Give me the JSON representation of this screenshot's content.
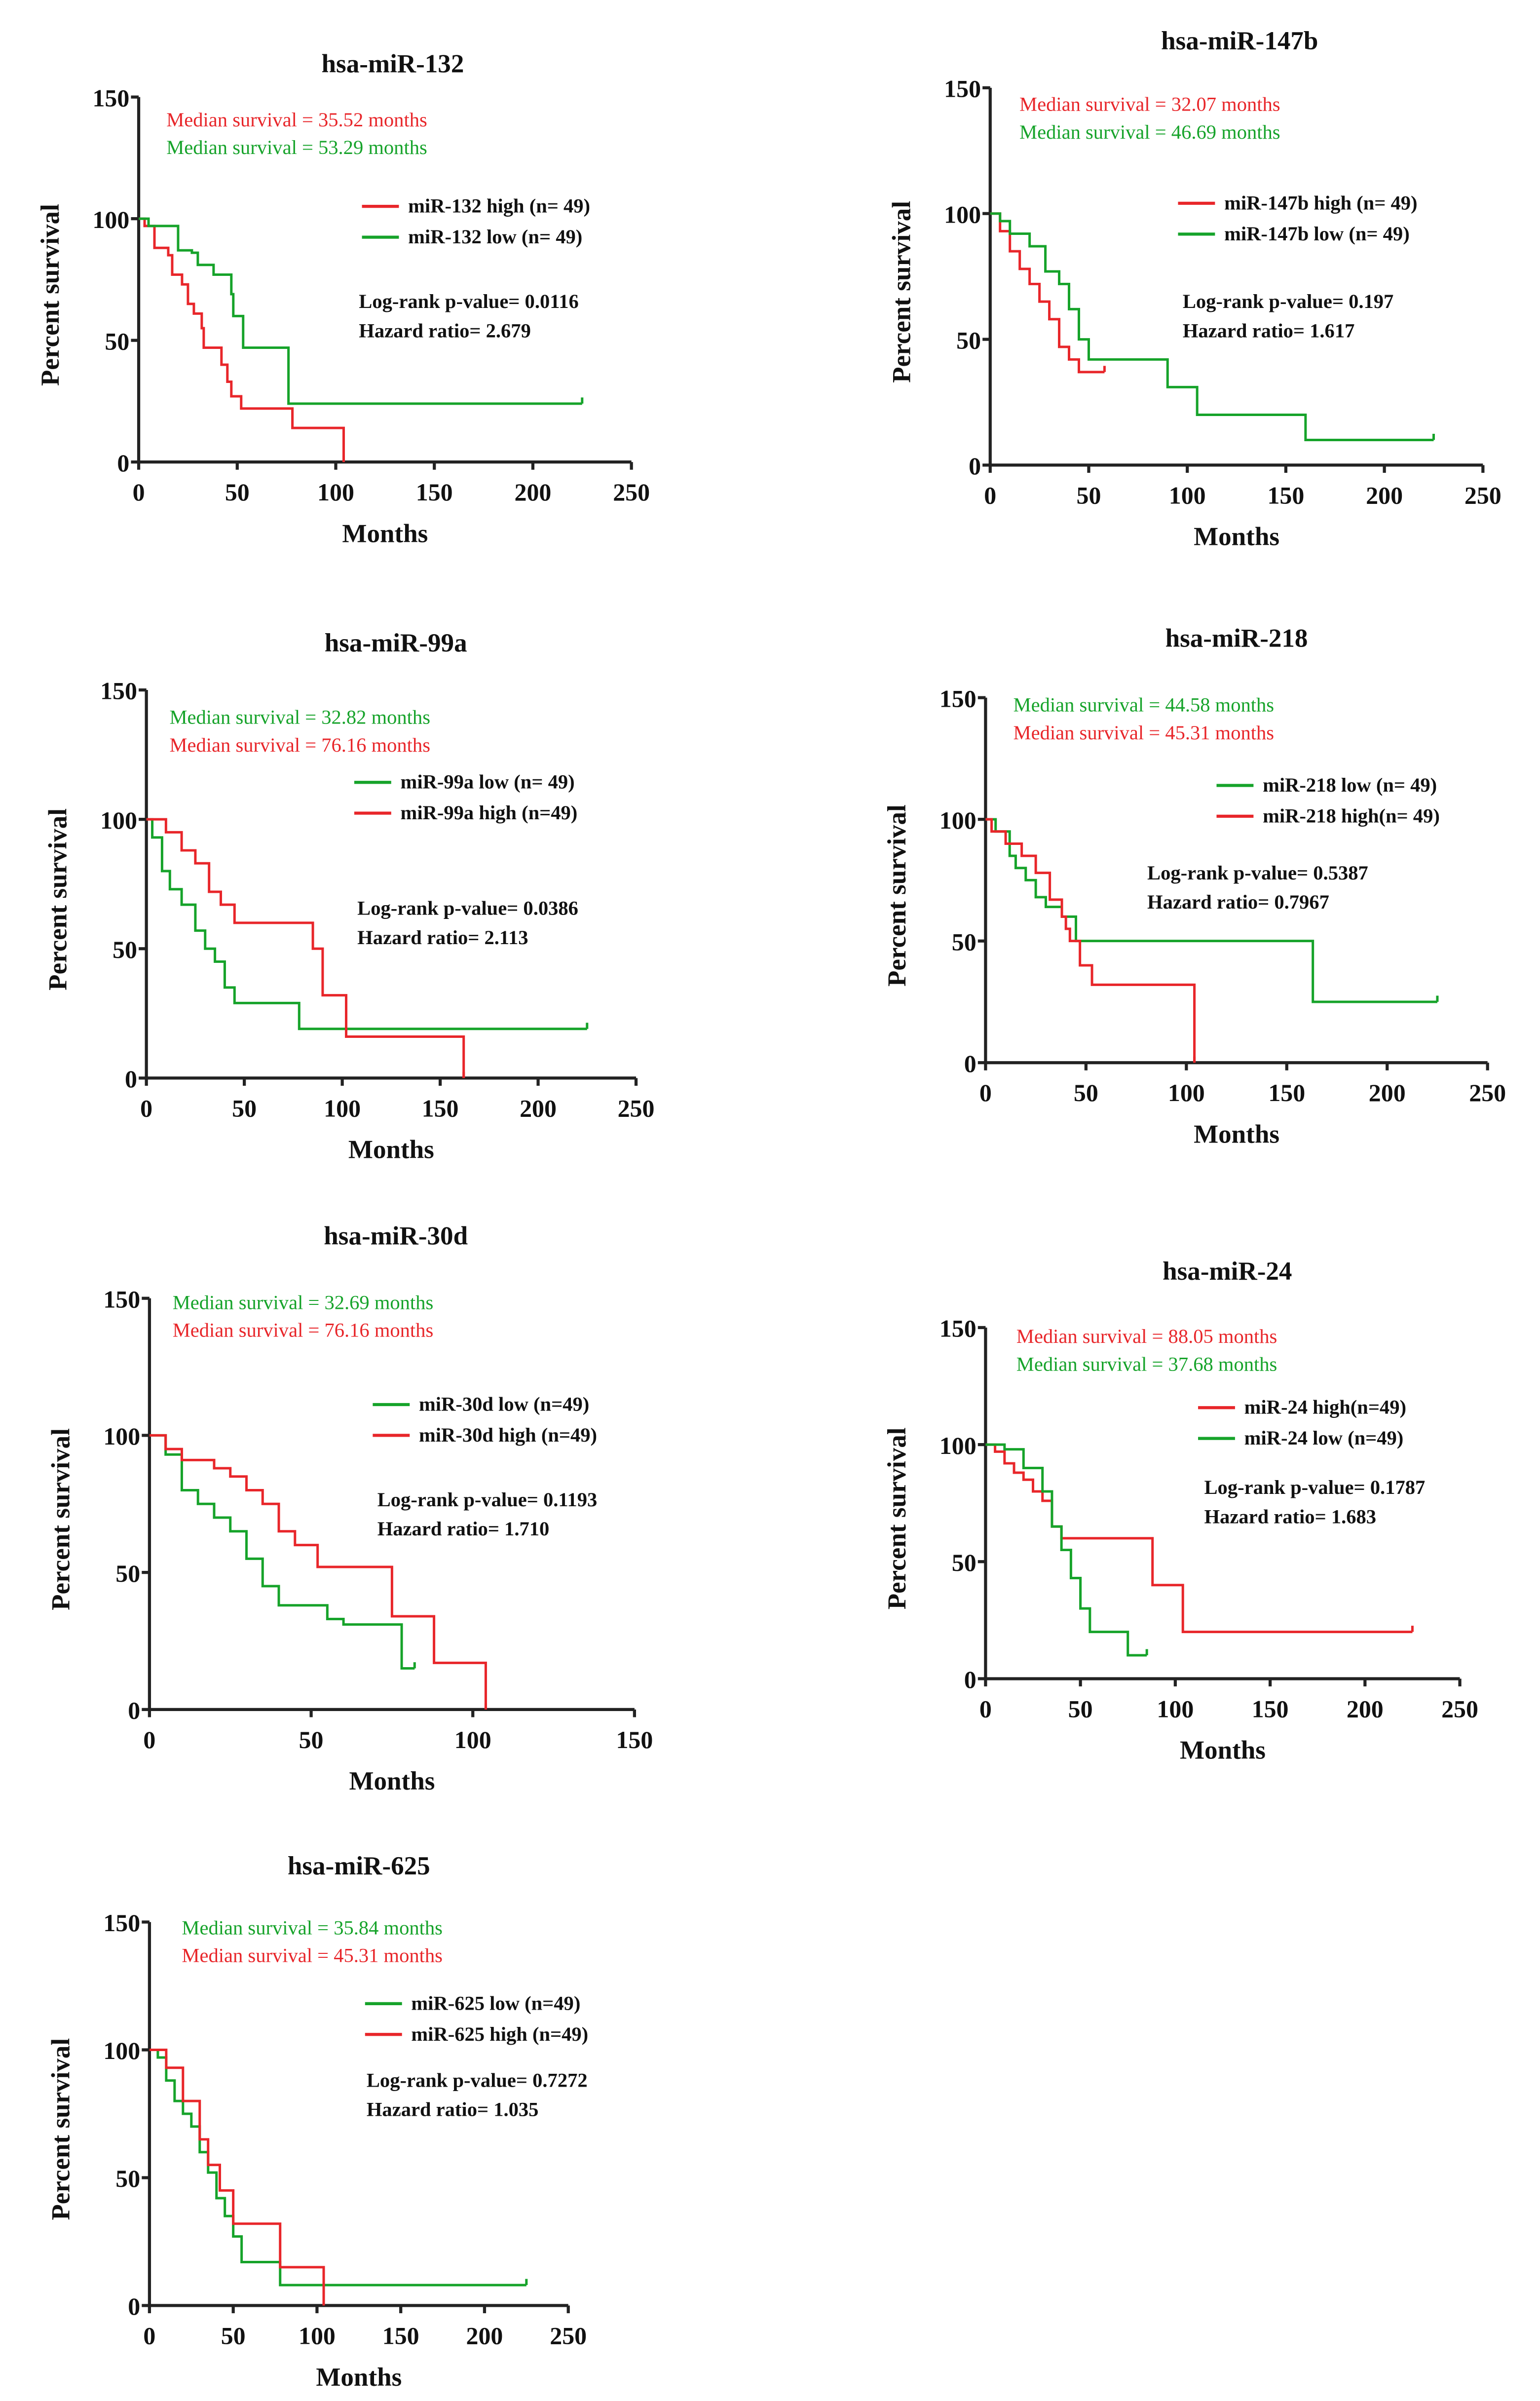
{
  "colors": {
    "high": "#e8262a",
    "low": "#16a32a",
    "axis": "#222222"
  },
  "chart_data": [
    {
      "type": "line",
      "title": "hsa-miR-132",
      "xlabel": "Months",
      "ylabel": "Percent survival",
      "xlim": [
        0,
        250
      ],
      "ylim": [
        0,
        150
      ],
      "xticks": [
        "0",
        "50",
        "100",
        "150",
        "200",
        "250"
      ],
      "yticks": [
        "0",
        "50",
        "100",
        "150"
      ],
      "median": [
        {
          "text": "Median survival = 35.52 months",
          "group": "high"
        },
        {
          "text": "Median survival = 53.29 months",
          "group": "low"
        }
      ],
      "legend": [
        {
          "text": "miR-132 high (n= 49)",
          "group": "high"
        },
        {
          "text": "miR-132 low (n= 49)",
          "group": "low"
        }
      ],
      "logrank": "Log-rank p-value= 0.0116",
      "hazard": "Hazard ratio= 2.679",
      "series": [
        {
          "name": "miR-132 high",
          "group": "high",
          "steps": [
            [
              0,
              100
            ],
            [
              3,
              97
            ],
            [
              8,
              88
            ],
            [
              15,
              85
            ],
            [
              17,
              77
            ],
            [
              22,
              73
            ],
            [
              25,
              65
            ],
            [
              28,
              61
            ],
            [
              32,
              55
            ],
            [
              33,
              47
            ],
            [
              42,
              40
            ],
            [
              45,
              33
            ],
            [
              47,
              27
            ],
            [
              52,
              22
            ],
            [
              78,
              14
            ],
            [
              104,
              0
            ]
          ],
          "end": 104
        },
        {
          "name": "miR-132 low",
          "group": "low",
          "steps": [
            [
              0,
              100
            ],
            [
              5,
              97
            ],
            [
              20,
              87
            ],
            [
              27,
              86
            ],
            [
              30,
              81
            ],
            [
              38,
              77
            ],
            [
              47,
              69
            ],
            [
              48,
              60
            ],
            [
              53,
              47
            ],
            [
              76,
              24
            ]
          ],
          "end": 225
        }
      ]
    },
    {
      "type": "line",
      "title": "hsa-miR-147b",
      "xlabel": "Months",
      "ylabel": "Percent survival",
      "xlim": [
        0,
        250
      ],
      "ylim": [
        0,
        150
      ],
      "xticks": [
        "0",
        "50",
        "100",
        "150",
        "200",
        "250"
      ],
      "yticks": [
        "0",
        "50",
        "100",
        "150"
      ],
      "median": [
        {
          "text": "Median survival = 32.07 months",
          "group": "high"
        },
        {
          "text": "Median survival = 46.69 months",
          "group": "low"
        }
      ],
      "legend": [
        {
          "text": "miR-147b high  (n= 49)",
          "group": "high"
        },
        {
          "text": "miR-147b low  (n= 49)",
          "group": "low"
        }
      ],
      "logrank": "Log-rank p-value= 0.197",
      "hazard": "Hazard ratio= 1.617",
      "series": [
        {
          "name": "miR-147b high",
          "group": "high",
          "steps": [
            [
              0,
              100
            ],
            [
              5,
              93
            ],
            [
              10,
              85
            ],
            [
              15,
              78
            ],
            [
              20,
              72
            ],
            [
              25,
              65
            ],
            [
              30,
              58
            ],
            [
              35,
              47
            ],
            [
              40,
              42
            ],
            [
              45,
              37
            ]
          ],
          "end": 58
        },
        {
          "name": "miR-147b low",
          "group": "low",
          "steps": [
            [
              0,
              100
            ],
            [
              5,
              97
            ],
            [
              10,
              92
            ],
            [
              20,
              87
            ],
            [
              28,
              77
            ],
            [
              35,
              72
            ],
            [
              40,
              62
            ],
            [
              45,
              50
            ],
            [
              50,
              42
            ],
            [
              90,
              31
            ],
            [
              105,
              20
            ],
            [
              160,
              10
            ]
          ],
          "end": 225
        }
      ]
    },
    {
      "type": "line",
      "title": "hsa-miR-99a",
      "xlabel": "Months",
      "ylabel": "Percent survival",
      "xlim": [
        0,
        250
      ],
      "ylim": [
        0,
        150
      ],
      "xticks": [
        "0",
        "50",
        "100",
        "150",
        "200",
        "250"
      ],
      "yticks": [
        "0",
        "50",
        "100",
        "150"
      ],
      "median": [
        {
          "text": "Median survival = 32.82 months",
          "group": "low"
        },
        {
          "text": "Median survival = 76.16 months",
          "group": "high"
        }
      ],
      "legend": [
        {
          "text": "miR-99a low  (n= 49)",
          "group": "low"
        },
        {
          "text": "miR-99a high (n=49)",
          "group": "high"
        }
      ],
      "logrank": "Log-rank p-value= 0.0386",
      "hazard": "Hazard ratio= 2.113",
      "series": [
        {
          "name": "miR-99a low",
          "group": "low",
          "steps": [
            [
              0,
              100
            ],
            [
              3,
              93
            ],
            [
              8,
              80
            ],
            [
              12,
              73
            ],
            [
              18,
              67
            ],
            [
              25,
              57
            ],
            [
              30,
              50
            ],
            [
              35,
              45
            ],
            [
              40,
              35
            ],
            [
              45,
              29
            ],
            [
              78,
              19
            ]
          ],
          "end": 225
        },
        {
          "name": "miR-99a high",
          "group": "high",
          "steps": [
            [
              0,
              100
            ],
            [
              10,
              95
            ],
            [
              18,
              88
            ],
            [
              25,
              83
            ],
            [
              32,
              72
            ],
            [
              38,
              67
            ],
            [
              45,
              60
            ],
            [
              85,
              50
            ],
            [
              90,
              32
            ],
            [
              102,
              16
            ],
            [
              162,
              0
            ]
          ],
          "end": 162
        }
      ]
    },
    {
      "type": "line",
      "title": "hsa-miR-218",
      "xlabel": "Months",
      "ylabel": "Percent survival",
      "xlim": [
        0,
        250
      ],
      "ylim": [
        0,
        150
      ],
      "xticks": [
        "0",
        "50",
        "100",
        "150",
        "200",
        "250"
      ],
      "yticks": [
        "0",
        "50",
        "100",
        "150"
      ],
      "median": [
        {
          "text": "Median survival = 44.58 months",
          "group": "low"
        },
        {
          "text": "Median survival = 45.31 months",
          "group": "high"
        }
      ],
      "legend": [
        {
          "text": "miR-218 low (n= 49)",
          "group": "low"
        },
        {
          "text": "miR-218 high(n= 49)",
          "group": "high"
        }
      ],
      "logrank": "Log-rank p-value= 0.5387",
      "hazard": "Hazard ratio= 0.7967",
      "series": [
        {
          "name": "miR-218 low",
          "group": "low",
          "steps": [
            [
              0,
              100
            ],
            [
              5,
              95
            ],
            [
              12,
              85
            ],
            [
              15,
              80
            ],
            [
              20,
              75
            ],
            [
              25,
              68
            ],
            [
              30,
              64
            ],
            [
              38,
              60
            ],
            [
              45,
              50
            ],
            [
              163,
              25
            ]
          ],
          "end": 225
        },
        {
          "name": "miR-218 high",
          "group": "high",
          "steps": [
            [
              0,
              100
            ],
            [
              3,
              95
            ],
            [
              10,
              90
            ],
            [
              18,
              85
            ],
            [
              25,
              78
            ],
            [
              32,
              67
            ],
            [
              38,
              60
            ],
            [
              40,
              55
            ],
            [
              42,
              50
            ],
            [
              47,
              40
            ],
            [
              53,
              32
            ],
            [
              104,
              0
            ]
          ],
          "end": 104
        }
      ]
    },
    {
      "type": "line",
      "title": "hsa-miR-30d",
      "xlabel": "Months",
      "ylabel": "Percent survival",
      "xlim": [
        0,
        150
      ],
      "ylim": [
        0,
        150
      ],
      "xticks": [
        "0",
        "50",
        "100",
        "150"
      ],
      "yticks": [
        "0",
        "50",
        "100",
        "150"
      ],
      "median": [
        {
          "text": "Median survival = 32.69 months",
          "group": "low"
        },
        {
          "text": "Median survival = 76.16 months",
          "group": "high"
        }
      ],
      "legend": [
        {
          "text": "miR-30d low (n=49)",
          "group": "low"
        },
        {
          "text": "miR-30d high (n=49)",
          "group": "high"
        }
      ],
      "logrank": "Log-rank p-value= 0.1193",
      "hazard": "Hazard ratio= 1.710",
      "series": [
        {
          "name": "miR-30d low",
          "group": "low",
          "steps": [
            [
              0,
              100
            ],
            [
              5,
              93
            ],
            [
              10,
              80
            ],
            [
              15,
              75
            ],
            [
              20,
              70
            ],
            [
              25,
              65
            ],
            [
              30,
              55
            ],
            [
              35,
              45
            ],
            [
              40,
              38
            ],
            [
              55,
              33
            ],
            [
              60,
              31
            ],
            [
              78,
              15
            ]
          ],
          "end": 82
        },
        {
          "name": "miR-30d high",
          "group": "high",
          "steps": [
            [
              0,
              100
            ],
            [
              5,
              95
            ],
            [
              10,
              91
            ],
            [
              20,
              88
            ],
            [
              25,
              85
            ],
            [
              30,
              80
            ],
            [
              35,
              75
            ],
            [
              40,
              65
            ],
            [
              45,
              60
            ],
            [
              52,
              52
            ],
            [
              75,
              34
            ],
            [
              88,
              17
            ],
            [
              104,
              0
            ]
          ],
          "end": 104
        }
      ]
    },
    {
      "type": "line",
      "title": "hsa-miR-24",
      "xlabel": "Months",
      "ylabel": "Percent survival",
      "xlim": [
        0,
        250
      ],
      "ylim": [
        0,
        150
      ],
      "xticks": [
        "0",
        "50",
        "100",
        "150",
        "200",
        "250"
      ],
      "yticks": [
        "0",
        "50",
        "100",
        "150"
      ],
      "median": [
        {
          "text": "Median survival = 88.05 months",
          "group": "high"
        },
        {
          "text": "Median survival = 37.68  months",
          "group": "low"
        }
      ],
      "legend": [
        {
          "text": "miR-24 high(n=49)",
          "group": "high"
        },
        {
          "text": "miR-24 low (n=49)",
          "group": "low"
        }
      ],
      "logrank": "Log-rank p-value= 0.1787",
      "hazard": "Hazard ratio= 1.683",
      "series": [
        {
          "name": "miR-24 high",
          "group": "high",
          "steps": [
            [
              0,
              100
            ],
            [
              5,
              97
            ],
            [
              10,
              92
            ],
            [
              15,
              88
            ],
            [
              20,
              85
            ],
            [
              25,
              80
            ],
            [
              30,
              76
            ],
            [
              35,
              65
            ],
            [
              40,
              60
            ],
            [
              88,
              40
            ],
            [
              104,
              20
            ]
          ],
          "end": 225
        },
        {
          "name": "miR-24 low",
          "group": "low",
          "steps": [
            [
              0,
              100
            ],
            [
              10,
              98
            ],
            [
              20,
              90
            ],
            [
              30,
              80
            ],
            [
              35,
              65
            ],
            [
              40,
              55
            ],
            [
              45,
              43
            ],
            [
              50,
              30
            ],
            [
              55,
              20
            ],
            [
              75,
              10
            ]
          ],
          "end": 85
        }
      ]
    },
    {
      "type": "line",
      "title": "hsa-miR-625",
      "xlabel": "Months",
      "ylabel": "Percent survival",
      "xlim": [
        0,
        250
      ],
      "ylim": [
        0,
        150
      ],
      "xticks": [
        "0",
        "50",
        "100",
        "150",
        "200",
        "250"
      ],
      "yticks": [
        "0",
        "50",
        "100",
        "150"
      ],
      "median": [
        {
          "text": "Median survival = 35.84 months",
          "group": "low"
        },
        {
          "text": "Median survival =  45.31 months",
          "group": "high"
        }
      ],
      "legend": [
        {
          "text": "miR-625 low (n=49)",
          "group": "low"
        },
        {
          "text": "miR-625 high (n=49)",
          "group": "high"
        }
      ],
      "logrank": "Log-rank p-value= 0.7272",
      "hazard": "Hazard ratio= 1.035",
      "series": [
        {
          "name": "miR-625 low",
          "group": "low",
          "steps": [
            [
              0,
              100
            ],
            [
              5,
              97
            ],
            [
              10,
              88
            ],
            [
              15,
              80
            ],
            [
              20,
              75
            ],
            [
              25,
              70
            ],
            [
              30,
              60
            ],
            [
              35,
              52
            ],
            [
              40,
              42
            ],
            [
              45,
              35
            ],
            [
              50,
              27
            ],
            [
              55,
              17
            ],
            [
              78,
              8
            ]
          ],
          "end": 225
        },
        {
          "name": "miR-625 high",
          "group": "high",
          "steps": [
            [
              0,
              100
            ],
            [
              10,
              93
            ],
            [
              20,
              80
            ],
            [
              30,
              65
            ],
            [
              35,
              55
            ],
            [
              42,
              45
            ],
            [
              50,
              32
            ],
            [
              78,
              15
            ],
            [
              104,
              0
            ]
          ],
          "end": 104
        }
      ]
    }
  ]
}
